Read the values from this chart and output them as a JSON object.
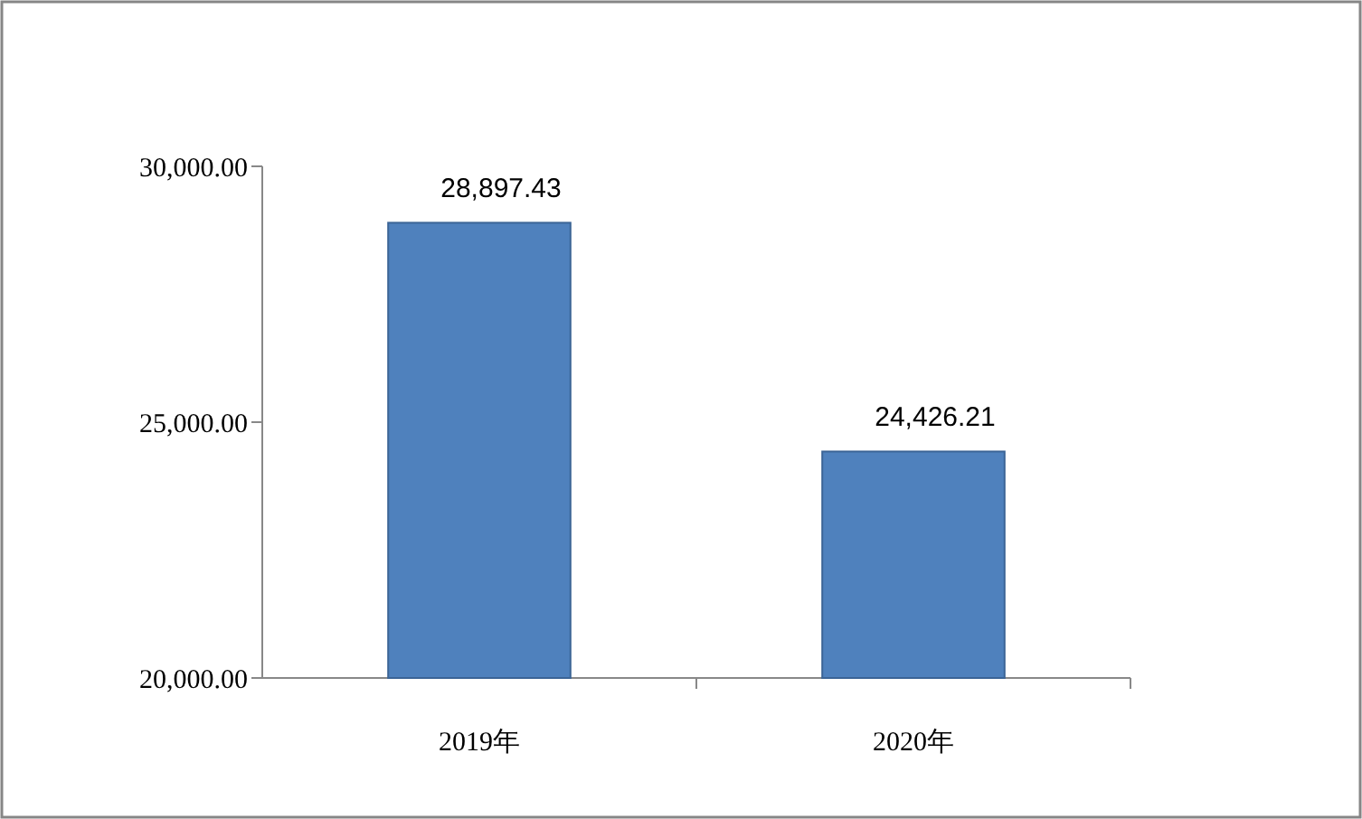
{
  "chart_data": {
    "type": "bar",
    "categories": [
      "2019年",
      "2020年"
    ],
    "values": [
      28897.43,
      24426.21
    ],
    "value_labels": [
      "28,897.43",
      "24,426.21"
    ],
    "color": "#4f81bd",
    "ylim": [
      20000,
      30000
    ],
    "yticks": [
      {
        "value": 20000,
        "label": "20,000.00"
      },
      {
        "value": 25000,
        "label": "25,000.00"
      },
      {
        "value": 30000,
        "label": "30,000.00"
      }
    ],
    "grid": false
  }
}
